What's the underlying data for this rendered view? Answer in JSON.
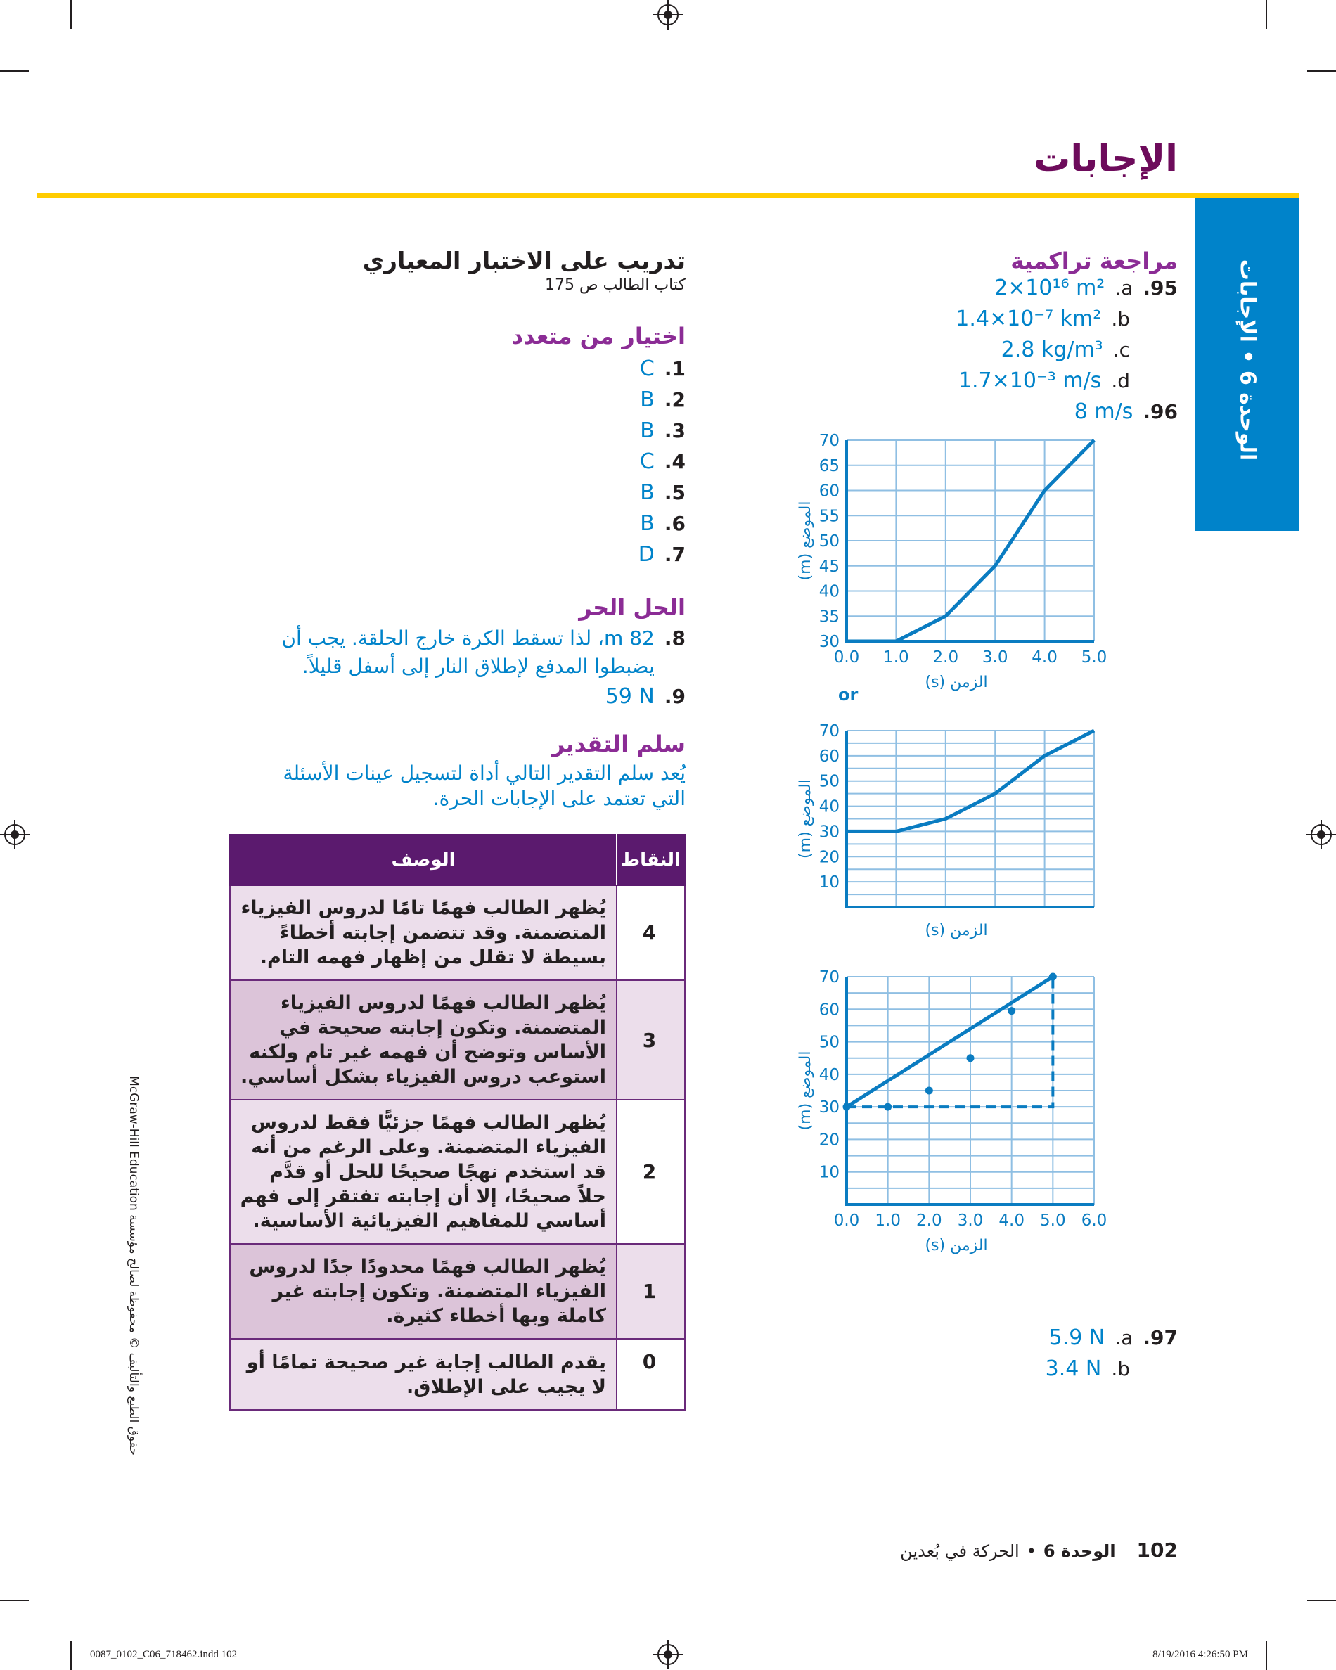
{
  "header": {
    "title": "الإجابات"
  },
  "side_tab": {
    "label": "الوحدة 6 • الإجابات"
  },
  "review": {
    "heading": "مراجعة تراكمية",
    "items": [
      {
        "num": ".95",
        "sub": ".a",
        "answer": "2×10¹⁶ m²"
      },
      {
        "num": "",
        "sub": ".b",
        "answer": "1.4×10⁻⁷ km²"
      },
      {
        "num": "",
        "sub": ".c",
        "answer": "2.8 kg/m³"
      },
      {
        "num": "",
        "sub": ".d",
        "answer": "1.7×10⁻³ m/s"
      },
      {
        "num": ".96",
        "sub": "",
        "answer": "8 m/s"
      }
    ],
    "q97": [
      {
        "num": ".97",
        "sub": ".a",
        "answer": "5.9 N"
      },
      {
        "num": "",
        "sub": ".b",
        "answer": "3.4 N"
      }
    ]
  },
  "charts_separator": "or",
  "chart_data": [
    {
      "type": "line",
      "x": [
        0,
        1,
        2,
        3,
        4,
        5
      ],
      "y": [
        30,
        30,
        35,
        45,
        60,
        70
      ],
      "xlim": [
        0,
        5
      ],
      "ylim": [
        30,
        70
      ],
      "xtick_labels": [
        "0.0",
        "1.0",
        "2.0",
        "3.0",
        "4.0",
        "5.0"
      ],
      "ytick_labels": [
        "30",
        "35",
        "40",
        "45",
        "50",
        "55",
        "60",
        "65",
        "70"
      ],
      "xlabel": "الزمن (s)",
      "ylabel": "الموضع (m)",
      "grid": true,
      "color": "#0a7cc1"
    },
    {
      "type": "line",
      "x": [
        0,
        1,
        2,
        3,
        4,
        5
      ],
      "y": [
        30,
        30,
        35,
        45,
        60,
        70
      ],
      "xlim": [
        0,
        5
      ],
      "ylim": [
        0,
        70
      ],
      "xtick_labels": [],
      "ytick_labels": [
        "10",
        "20",
        "30",
        "40",
        "50",
        "60",
        "70"
      ],
      "xlabel": "الزمن (s)",
      "ylabel": "الموضع (m)",
      "grid": true,
      "color": "#0a7cc1"
    },
    {
      "type": "scatter",
      "x": [
        0,
        1,
        2,
        3,
        4,
        5
      ],
      "y": [
        30,
        30,
        35,
        45,
        59.5,
        70
      ],
      "fit_line": [
        [
          0,
          30
        ],
        [
          5,
          70
        ]
      ],
      "dashed_guides": [
        [
          0,
          30
        ],
        [
          5,
          30
        ],
        [
          5,
          70
        ]
      ],
      "xlim": [
        0,
        6
      ],
      "ylim": [
        0,
        70
      ],
      "xtick_labels": [
        "0.0",
        "1.0",
        "2.0",
        "3.0",
        "4.0",
        "5.0",
        "6.0"
      ],
      "ytick_labels": [
        "10",
        "20",
        "30",
        "40",
        "50",
        "60",
        "70"
      ],
      "xlabel": "الزمن (s)",
      "ylabel": "الموضع (m)",
      "grid": true,
      "color": "#0a7cc1"
    }
  ],
  "practice": {
    "heading": "تدريب على الاختبار المعياري",
    "subtitle": "كتاب الطالب ص 175",
    "mc_heading": "اختيار من متعدد",
    "mc_items": [
      {
        "num": ".1",
        "answer": "C"
      },
      {
        "num": ".2",
        "answer": "B"
      },
      {
        "num": ".3",
        "answer": "B"
      },
      {
        "num": ".4",
        "answer": "C"
      },
      {
        "num": ".5",
        "answer": "B"
      },
      {
        "num": ".6",
        "answer": "B"
      },
      {
        "num": ".7",
        "answer": "D"
      }
    ],
    "free_heading": "الحل الحر",
    "free_items": [
      {
        "num": ".8",
        "answer": "82 m، لذا تسقط الكرة خارج الحلقة. يجب أن يضبطوا المدفع لإطلاق النار إلى أسفل قليلاً."
      },
      {
        "num": ".9",
        "answer": "59 N"
      }
    ],
    "rubric_heading": "سلم التقدير",
    "rubric_intro": "يُعد سلم التقدير التالي أداة لتسجيل عينات الأسئلة التي تعتمد على الإجابات الحرة."
  },
  "rubric": {
    "headers": {
      "points": "النقاط",
      "description": "الوصف"
    },
    "rows": [
      {
        "points": "4",
        "description": "يُظهر الطالب فهمًا تامًا لدروس الفيزياء المتضمنة. وقد تتضمن إجابته أخطاءً بسيطة لا تقلل من إظهار فهمه التام."
      },
      {
        "points": "3",
        "description": "يُظهر الطالب فهمًا لدروس الفيزياء المتضمنة. وتكون إجابته صحيحة في الأساس وتوضح أن فهمه غير تام ولكنه استوعب دروس الفيزياء بشكل أساسي."
      },
      {
        "points": "2",
        "description": "يُظهر الطالب فهمًا جزئيًّا فقط لدروس الفيزياء المتضمنة. وعلى الرغم من أنه قد استخدم نهجًا صحيحًا للحل أو قدَّم حلاً صحيحًا، إلا أن إجابته تفتقر إلى فهم أساسي للمفاهيم الفيزيائية الأساسية."
      },
      {
        "points": "1",
        "description": "يُظهر الطالب فهمًا محدودًا جدًا لدروس الفيزياء المتضمنة. وتكون إجابته غير كاملة وبها أخطاء كثيرة."
      },
      {
        "points": "0",
        "description": "يقدم الطالب إجابة غير صحيحة تمامًا أو لا يجيب على الإطلاق."
      }
    ]
  },
  "footer": {
    "page_number": "102",
    "unit": "الوحدة 6",
    "separator": "•",
    "chapter": "الحركة في بُعدين"
  },
  "copyright": "حقوق الطبع والتأليف © محفوظة لصالح مؤسسة McGraw-Hill Education",
  "slug": {
    "file": "0087_0102_C06_718462.indd   102",
    "timestamp": "8/19/2016   4:26:50 PM"
  },
  "colors": {
    "title": "#6d0b5b",
    "heading": "#8b2c95",
    "answer": "#0083ca",
    "rule": "#ffcc00",
    "tab": "#0083ca",
    "table_header": "#5b1a6e"
  }
}
